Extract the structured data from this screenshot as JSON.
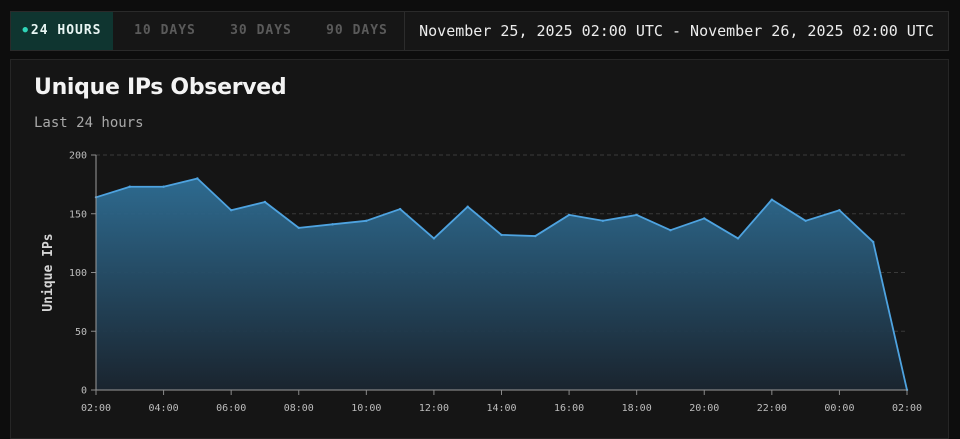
{
  "tabs": [
    {
      "label": "24 HOURS",
      "active": true
    },
    {
      "label": "10 DAYS",
      "active": false
    },
    {
      "label": "30 DAYS",
      "active": false
    },
    {
      "label": "90 DAYS",
      "active": false
    }
  ],
  "date_range": "November 25, 2025 02:00 UTC - November 26, 2025 02:00 UTC",
  "colors": {
    "accent": "#2fd5b8",
    "line": "#4ea3e0",
    "area_top": "#2f6f96",
    "area_bottom": "#1a2530"
  },
  "chart_data": {
    "type": "area",
    "title": "Unique IPs Observed",
    "subtitle": "Last 24 hours",
    "ylabel": "Unique IPs",
    "xlabel": "",
    "ylim": [
      0,
      200
    ],
    "yticks": [
      0,
      50,
      100,
      150,
      200
    ],
    "grid": true,
    "xtick_labels": [
      "02:00",
      "04:00",
      "06:00",
      "08:00",
      "10:00",
      "12:00",
      "14:00",
      "16:00",
      "18:00",
      "20:00",
      "22:00",
      "00:00",
      "02:00"
    ],
    "x": [
      "02:00",
      "03:00",
      "04:00",
      "05:00",
      "06:00",
      "07:00",
      "08:00",
      "09:00",
      "10:00",
      "11:00",
      "12:00",
      "13:00",
      "14:00",
      "15:00",
      "16:00",
      "17:00",
      "18:00",
      "19:00",
      "20:00",
      "21:00",
      "22:00",
      "23:00",
      "00:00",
      "01:00",
      "02:00"
    ],
    "values": [
      164,
      173,
      173,
      180,
      153,
      160,
      138,
      141,
      144,
      154,
      129,
      156,
      132,
      131,
      149,
      144,
      149,
      136,
      146,
      129,
      162,
      144,
      153,
      126,
      0
    ]
  }
}
